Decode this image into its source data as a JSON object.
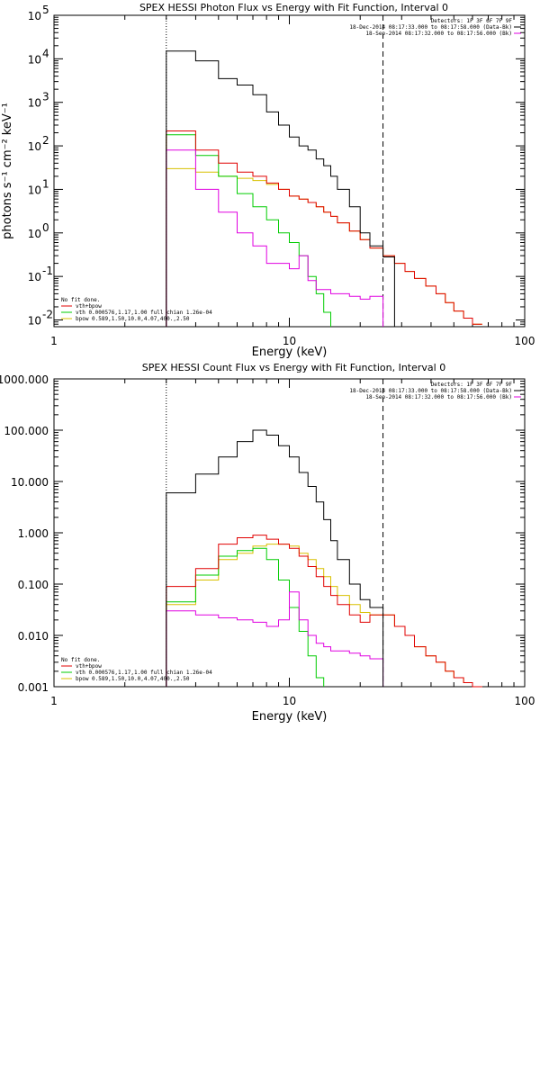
{
  "colors": {
    "data": "#000000",
    "total": "#e00000",
    "vth": "#00cc00",
    "bpow": "#d8c000",
    "background": "#e000e0"
  },
  "chart_data": [
    {
      "type": "line",
      "title": "SPEX HESSI Photon Flux vs Energy with Fit Function, Interval 0",
      "xlabel": "Energy (keV)",
      "ylabel": "photons s⁻¹ cm⁻² keV⁻¹",
      "xscale": "log",
      "yscale": "log",
      "xlim": [
        1,
        100
      ],
      "ylim": [
        0.007,
        100000
      ],
      "xticks": [
        {
          "value": 1,
          "label": "1"
        },
        {
          "value": 10,
          "label": "10"
        },
        {
          "value": 100,
          "label": "100"
        }
      ],
      "yticks": [
        {
          "value": 0.01,
          "base": "10",
          "exp": "-2"
        },
        {
          "value": 0.1,
          "base": "10",
          "exp": "-1"
        },
        {
          "value": 1,
          "base": "10",
          "exp": "0"
        },
        {
          "value": 10,
          "base": "10",
          "exp": "1"
        },
        {
          "value": 100,
          "base": "10",
          "exp": "2"
        },
        {
          "value": 1000,
          "base": "10",
          "exp": "3"
        },
        {
          "value": 10000,
          "base": "10",
          "exp": "4"
        },
        {
          "value": 100000,
          "base": "10",
          "exp": "5"
        }
      ],
      "vlines": [
        {
          "x": 3.0,
          "style": "dotted"
        },
        {
          "x": 25.0,
          "style": "dashed"
        }
      ],
      "header_text": [
        "Detectors: 1F 3F 6F 7F 9F",
        "18-Dec-2014 08:17:33.000 to 08:17:58.000 (Data-Bk)",
        "18-Sep-2014 08:17:32.000 to 08:17:56.000 (Bk)"
      ],
      "legend_text": [
        "No fit done.",
        "vth+bpow",
        "vth 0.000576,1.17,1.00  full chian 1.26e-04",
        "bpow 0.589,1.50,10.0,4.07,400.,2.50"
      ],
      "edges": [
        3.0,
        3.5,
        4.0,
        4.5,
        5.0,
        5.5,
        6.0,
        6.5,
        7.0,
        7.5,
        8.0,
        8.5,
        9.0,
        9.5,
        10.0,
        11.0,
        12.0,
        13.0,
        14.0,
        15.0,
        16.0,
        18.0,
        20.0,
        22.0,
        25.0,
        28.0,
        31.0,
        34.0,
        38.0,
        42.0,
        46.0,
        50.0,
        55.0,
        60.0,
        66.0
      ],
      "series": [
        {
          "key": "data",
          "values": [
            15000,
            15000,
            9000,
            9000,
            3500,
            3500,
            2500,
            2500,
            1500,
            1500,
            600,
            600,
            300,
            300,
            160,
            100,
            80,
            50,
            35,
            20,
            10,
            4,
            1,
            0.5,
            0.28,
            null,
            null,
            null,
            null,
            null,
            null,
            null,
            null,
            null
          ]
        },
        {
          "key": "total",
          "values": [
            220,
            220,
            80,
            80,
            40,
            40,
            25,
            25,
            20,
            20,
            14,
            14,
            10,
            10,
            7,
            6,
            5,
            4,
            3,
            2.4,
            1.7,
            1.1,
            0.7,
            0.45,
            0.3,
            0.2,
            0.13,
            0.09,
            0.06,
            0.04,
            0.025,
            0.016,
            0.011,
            0.008
          ]
        },
        {
          "key": "vth",
          "values": [
            180,
            180,
            60,
            60,
            20,
            20,
            8,
            8,
            4,
            4,
            2,
            2,
            1,
            1,
            0.6,
            0.3,
            0.1,
            0.04,
            0.015,
            null,
            null,
            null,
            null,
            null,
            null,
            null,
            null,
            null,
            null,
            null,
            null,
            null,
            null,
            null
          ]
        },
        {
          "key": "bpow",
          "values": [
            30,
            30,
            25,
            25,
            20,
            20,
            18,
            18,
            16,
            16,
            13,
            13,
            10,
            10,
            7,
            6,
            5,
            4,
            3,
            2.4,
            1.7,
            1.1,
            0.7,
            0.45,
            0.3,
            0.2,
            0.13,
            0.09,
            0.06,
            0.04,
            0.025,
            0.016,
            0.011,
            0.008
          ]
        },
        {
          "key": "background",
          "values": [
            80,
            80,
            10,
            10,
            3,
            3,
            1,
            1,
            0.5,
            0.5,
            0.2,
            0.2,
            0.2,
            0.2,
            0.15,
            0.3,
            0.08,
            0.05,
            0.05,
            0.04,
            0.04,
            0.035,
            0.03,
            0.035,
            null,
            null,
            null,
            null,
            null,
            null,
            null,
            null,
            null,
            null
          ]
        }
      ]
    },
    {
      "type": "line",
      "title": "SPEX HESSI Count Flux vs Energy with Fit Function, Interval 0",
      "xlabel": "Energy (keV)",
      "ylabel": "",
      "xscale": "log",
      "yscale": "log",
      "xlim": [
        1,
        100
      ],
      "ylim": [
        0.001,
        1000
      ],
      "xticks": [
        {
          "value": 1,
          "label": "1"
        },
        {
          "value": 10,
          "label": "10"
        },
        {
          "value": 100,
          "label": "100"
        }
      ],
      "yticks": [
        {
          "value": 0.001,
          "label": "0.001"
        },
        {
          "value": 0.01,
          "label": "0.010"
        },
        {
          "value": 0.1,
          "label": "0.100"
        },
        {
          "value": 1,
          "label": "1.000"
        },
        {
          "value": 10,
          "label": "10.000"
        },
        {
          "value": 100,
          "label": "100.000"
        },
        {
          "value": 1000,
          "label": "1000.000"
        }
      ],
      "vlines": [
        {
          "x": 3.0,
          "style": "dotted"
        },
        {
          "x": 25.0,
          "style": "dashed"
        }
      ],
      "header_text": [
        "Detectors: 1F 3F 6F 7F 9F",
        "18-Dec-2014 08:17:33.000 to 08:17:58.000 (Data-Bk)",
        "18-Sep-2014 08:17:32.000 to 08:17:56.000 (Bk)"
      ],
      "legend_text": [
        "No fit done.",
        "vth+bpow",
        "vth 0.000576,1.17,1.00  full chian 1.26e-04",
        "bpow 0.589,1.50,10.0,4.07,400.,2.50"
      ],
      "edges": [
        3.0,
        3.5,
        4.0,
        4.5,
        5.0,
        5.5,
        6.0,
        6.5,
        7.0,
        7.5,
        8.0,
        8.5,
        9.0,
        9.5,
        10.0,
        11.0,
        12.0,
        13.0,
        14.0,
        15.0,
        16.0,
        18.0,
        20.0,
        22.0,
        25.0,
        28.0,
        31.0,
        34.0,
        38.0,
        42.0,
        46.0,
        50.0,
        55.0,
        60.0,
        66.0
      ],
      "series": [
        {
          "key": "data",
          "values": [
            6,
            6,
            14,
            14,
            30,
            30,
            60,
            60,
            100,
            100,
            80,
            80,
            50,
            50,
            30,
            15,
            8,
            4,
            1.8,
            0.7,
            0.3,
            0.1,
            0.05,
            0.035,
            null,
            null,
            null,
            null,
            null,
            null,
            null,
            null,
            null,
            null
          ]
        },
        {
          "key": "total",
          "values": [
            0.09,
            0.09,
            0.2,
            0.2,
            0.6,
            0.6,
            0.8,
            0.8,
            0.9,
            0.9,
            0.75,
            0.75,
            0.6,
            0.6,
            0.5,
            0.35,
            0.22,
            0.14,
            0.09,
            0.06,
            0.04,
            0.025,
            0.018,
            0.025,
            0.025,
            0.015,
            0.01,
            0.006,
            0.004,
            0.003,
            0.002,
            0.0015,
            0.0012,
            0.001
          ]
        },
        {
          "key": "vth",
          "values": [
            0.045,
            0.045,
            0.15,
            0.15,
            0.35,
            0.35,
            0.45,
            0.45,
            0.5,
            0.5,
            0.3,
            0.3,
            0.12,
            0.12,
            0.035,
            0.012,
            0.004,
            0.0015,
            null,
            null,
            null,
            null,
            null,
            null,
            null,
            null,
            null,
            null,
            null,
            null,
            null,
            null,
            null,
            null
          ]
        },
        {
          "key": "bpow",
          "values": [
            0.04,
            0.04,
            0.12,
            0.12,
            0.3,
            0.3,
            0.4,
            0.4,
            0.55,
            0.55,
            0.6,
            0.6,
            0.6,
            0.6,
            0.55,
            0.4,
            0.3,
            0.2,
            0.14,
            0.09,
            0.06,
            0.04,
            0.028,
            0.025,
            0.025,
            0.015,
            0.01,
            0.006,
            0.004,
            0.003,
            0.002,
            0.0015,
            0.0012,
            0.001
          ]
        },
        {
          "key": "background",
          "values": [
            0.03,
            0.03,
            0.025,
            0.025,
            0.022,
            0.022,
            0.02,
            0.02,
            0.018,
            0.018,
            0.015,
            0.015,
            0.02,
            0.02,
            0.07,
            0.02,
            0.01,
            0.007,
            0.006,
            0.005,
            0.005,
            0.0045,
            0.004,
            0.0035,
            null,
            null,
            null,
            null,
            null,
            null,
            null,
            null,
            null,
            null
          ]
        }
      ]
    }
  ]
}
